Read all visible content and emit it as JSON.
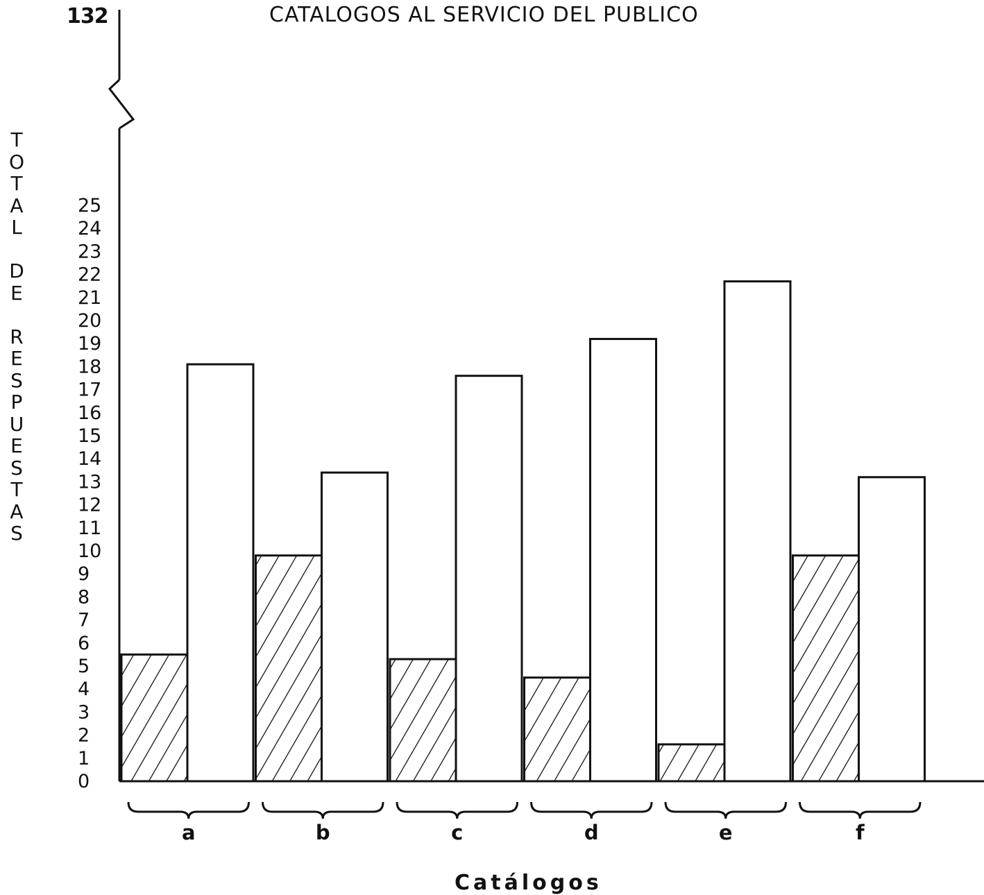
{
  "page_number": "132",
  "chart_data": {
    "type": "bar",
    "title": "CATALOGOS AL SERVICIO DEL PUBLICO",
    "xlabel": "Catálogos",
    "ylabel": "TOTAL DE RESPUESTAS",
    "ylim": [
      0,
      25
    ],
    "y_ticks": [
      "0",
      "1",
      "2",
      "3",
      "4",
      "5",
      "6",
      "7",
      "8",
      "9",
      "10",
      "11",
      "12",
      "13",
      "14",
      "15",
      "16",
      "17",
      "18",
      "19",
      "20",
      "21",
      "22",
      "23",
      "24",
      "25"
    ],
    "y_axis_break": true,
    "categories": [
      "a",
      "b",
      "c",
      "d",
      "e",
      "f"
    ],
    "series": [
      {
        "fill": "hatched",
        "values": [
          5.5,
          9.8,
          5.3,
          4.5,
          1.6,
          9.8
        ]
      },
      {
        "fill": "white",
        "values": [
          18.1,
          13.4,
          17.6,
          19.2,
          21.7,
          13.2
        ]
      }
    ],
    "grid": false,
    "legend": "none"
  }
}
